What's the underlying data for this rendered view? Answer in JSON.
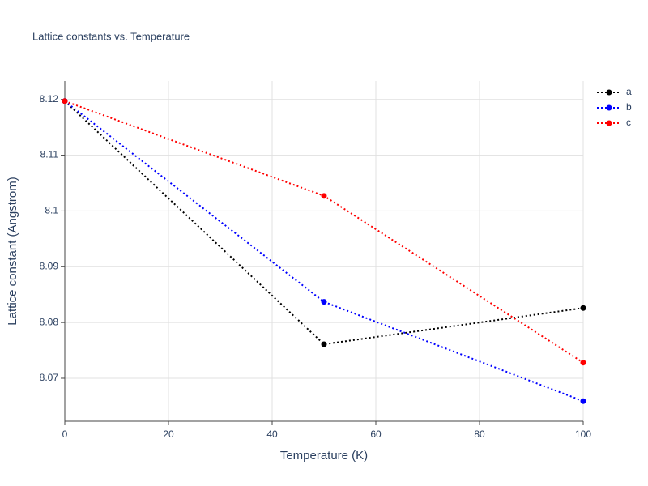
{
  "chart_data": {
    "type": "line",
    "title": "Lattice constants vs. Temperature",
    "x_label": "Temperature (K)",
    "y_label": "Lattice constant (Angstrom)",
    "x": [
      0,
      50,
      100
    ],
    "series": [
      {
        "name": "a",
        "color": "#000000",
        "values": [
          8.1197,
          8.0761,
          8.0826
        ]
      },
      {
        "name": "b",
        "color": "#0000ff",
        "values": [
          8.1197,
          8.0837,
          8.0659
        ]
      },
      {
        "name": "c",
        "color": "#ff0000",
        "values": [
          8.1197,
          8.1027,
          8.0728
        ]
      }
    ],
    "xlim": [
      0,
      100
    ],
    "xticks": [
      0,
      20,
      40,
      60,
      80,
      100
    ],
    "ylim": [
      8.0623,
      8.1233
    ],
    "yticks": [
      8.07,
      8.08,
      8.09,
      8.1,
      8.11,
      8.12
    ],
    "grid": true,
    "legend": "top-right"
  }
}
